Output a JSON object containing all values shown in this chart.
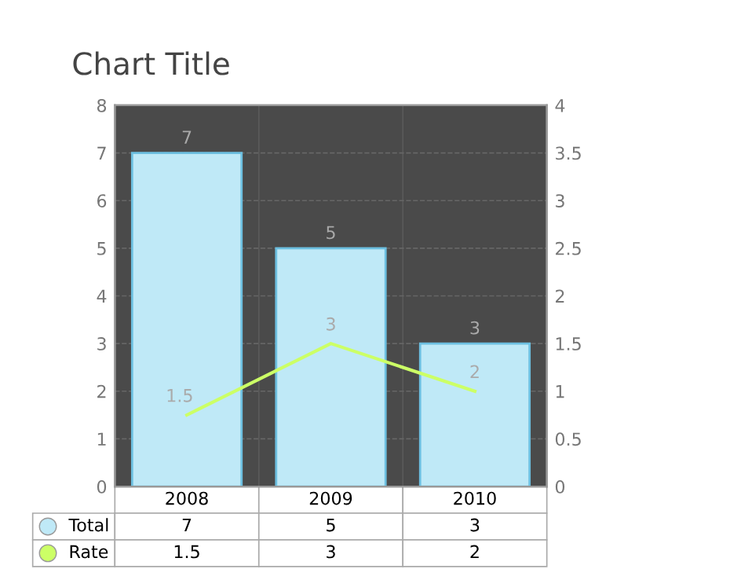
{
  "chart_data": {
    "type": "bar",
    "title": "Chart Title",
    "categories": [
      "2008",
      "2009",
      "2010"
    ],
    "series": [
      {
        "name": "Total",
        "color": "#bfe9f7",
        "values": [
          7,
          5,
          3
        ],
        "value_labels": [
          "7",
          "5",
          "3"
        ]
      },
      {
        "name": "Rate",
        "type": "line",
        "color": "#ccff66",
        "values": [
          1.5,
          3,
          2
        ],
        "value_labels": [
          "1.5",
          "3",
          "2"
        ]
      }
    ],
    "ylim": [
      0,
      8
    ],
    "yticks": [
      0,
      1,
      2,
      3,
      4,
      5,
      6,
      7,
      8
    ],
    "y2lim": [
      0,
      4
    ],
    "y2ticks": [
      0,
      0.5,
      1,
      1.5,
      2,
      2.5,
      3,
      3.5,
      4
    ],
    "grid": "y",
    "legend": "bottom left",
    "marker": "none",
    "line_style": "solid"
  }
}
